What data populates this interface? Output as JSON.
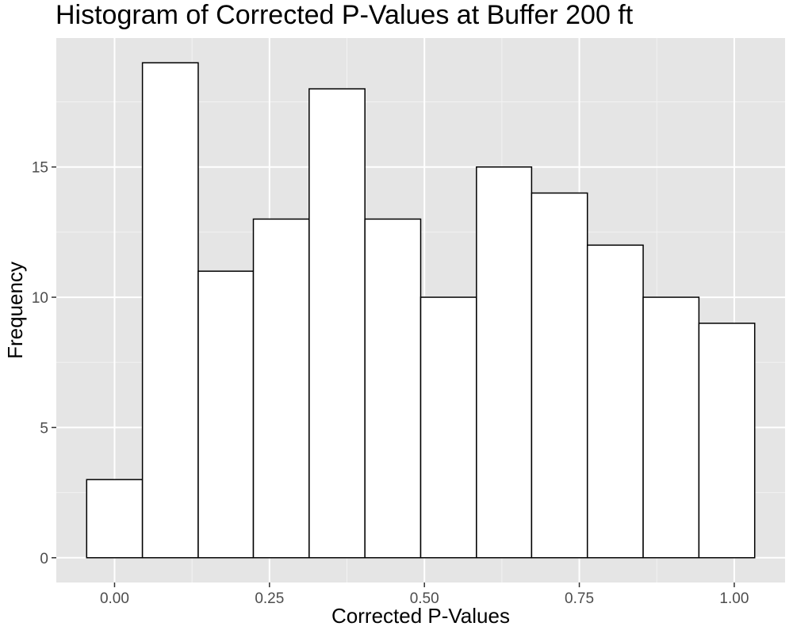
{
  "chart_data": {
    "type": "bar",
    "title": "Histogram of Corrected P-Values at Buffer 200 ft",
    "xlabel": "Corrected P-Values",
    "ylabel": "Frequency",
    "bin_width": 0.0898,
    "bins": [
      {
        "start": -0.045,
        "end": 0.045,
        "count": 3
      },
      {
        "start": 0.045,
        "end": 0.135,
        "count": 19
      },
      {
        "start": 0.135,
        "end": 0.224,
        "count": 11
      },
      {
        "start": 0.224,
        "end": 0.314,
        "count": 13
      },
      {
        "start": 0.314,
        "end": 0.404,
        "count": 18
      },
      {
        "start": 0.404,
        "end": 0.494,
        "count": 13
      },
      {
        "start": 0.494,
        "end": 0.584,
        "count": 10
      },
      {
        "start": 0.584,
        "end": 0.673,
        "count": 15
      },
      {
        "start": 0.673,
        "end": 0.763,
        "count": 14
      },
      {
        "start": 0.763,
        "end": 0.853,
        "count": 12
      },
      {
        "start": 0.853,
        "end": 0.943,
        "count": 10
      },
      {
        "start": 0.943,
        "end": 1.033,
        "count": 9
      }
    ],
    "xlim": [
      -0.094,
      1.082
    ],
    "ylim": [
      -0.95,
      19.95
    ],
    "x_ticks": [
      {
        "value": 0.0,
        "label": "0.00"
      },
      {
        "value": 0.25,
        "label": "0.25"
      },
      {
        "value": 0.5,
        "label": "0.50"
      },
      {
        "value": 0.75,
        "label": "0.75"
      },
      {
        "value": 1.0,
        "label": "1.00"
      }
    ],
    "y_ticks": [
      {
        "value": 0,
        "label": "0"
      },
      {
        "value": 5,
        "label": "5"
      },
      {
        "value": 10,
        "label": "10"
      },
      {
        "value": 15,
        "label": "15"
      }
    ],
    "grid": true,
    "colors": {
      "panel_background": "#e5e5e5",
      "grid_major": "#ffffff",
      "grid_minor": "#f2f2f2",
      "bar_fill": "#ffffff",
      "bar_stroke": "#000000",
      "tick_text": "#4d4d4d"
    }
  }
}
